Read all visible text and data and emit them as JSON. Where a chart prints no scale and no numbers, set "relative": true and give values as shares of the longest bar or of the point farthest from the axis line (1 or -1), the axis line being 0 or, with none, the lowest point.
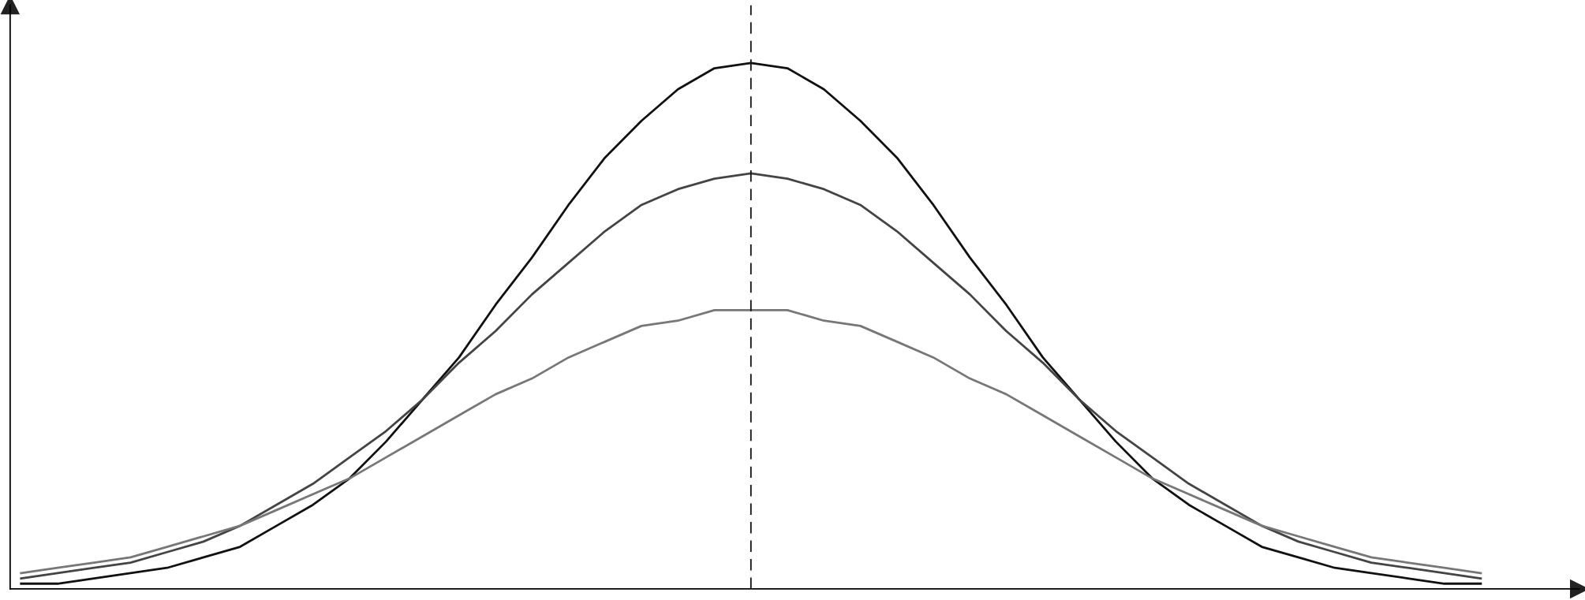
{
  "chart_data": {
    "type": "line",
    "relative": true,
    "categories": [
      null,
      null,
      null,
      null,
      null,
      null,
      null,
      null,
      null,
      null,
      null,
      null,
      null,
      null,
      null,
      null,
      null,
      null,
      null,
      null,
      null,
      null,
      null,
      null,
      null,
      null,
      null,
      null,
      null,
      null,
      null,
      null,
      null,
      null,
      null,
      null,
      null,
      null,
      null,
      null,
      null
    ],
    "series": [
      {
        "color": "#111111",
        "values": [
          0.01,
          0.01,
          0.02,
          0.03,
          0.04,
          0.06,
          0.08,
          0.12,
          0.16,
          0.21,
          0.28,
          0.36,
          0.44,
          0.54,
          0.63,
          0.73,
          0.82,
          0.89,
          0.95,
          0.99,
          1,
          0.99,
          0.95,
          0.89,
          0.82,
          0.73,
          0.63,
          0.54,
          0.44,
          0.36,
          0.28,
          0.21,
          0.16,
          0.12,
          0.08,
          0.06,
          0.04,
          0.03,
          0.02,
          0.01,
          0.01
        ]
      },
      {
        "color": "#444444",
        "values": [
          0.02,
          0.03,
          0.04,
          0.05,
          0.07,
          0.09,
          0.12,
          0.16,
          0.2,
          0.25,
          0.3,
          0.36,
          0.43,
          0.49,
          0.56,
          0.62,
          0.68,
          0.73,
          0.76,
          0.78,
          0.79,
          0.78,
          0.76,
          0.73,
          0.68,
          0.62,
          0.56,
          0.49,
          0.43,
          0.36,
          0.3,
          0.25,
          0.2,
          0.16,
          0.12,
          0.09,
          0.07,
          0.05,
          0.04,
          0.03,
          0.02
        ]
      },
      {
        "color": "#777777",
        "values": [
          0.03,
          0.04,
          0.05,
          0.06,
          0.08,
          0.1,
          0.12,
          0.15,
          0.18,
          0.21,
          0.25,
          0.29,
          0.33,
          0.37,
          0.4,
          0.44,
          0.47,
          0.5,
          0.51,
          0.53,
          0.53,
          0.53,
          0.51,
          0.5,
          0.47,
          0.44,
          0.4,
          0.37,
          0.33,
          0.29,
          0.25,
          0.21,
          0.18,
          0.15,
          0.12,
          0.1,
          0.08,
          0.06,
          0.05,
          0.04,
          0.03
        ]
      }
    ],
    "grid": false,
    "legend": false,
    "marker": "none",
    "line_style": "solid"
  }
}
